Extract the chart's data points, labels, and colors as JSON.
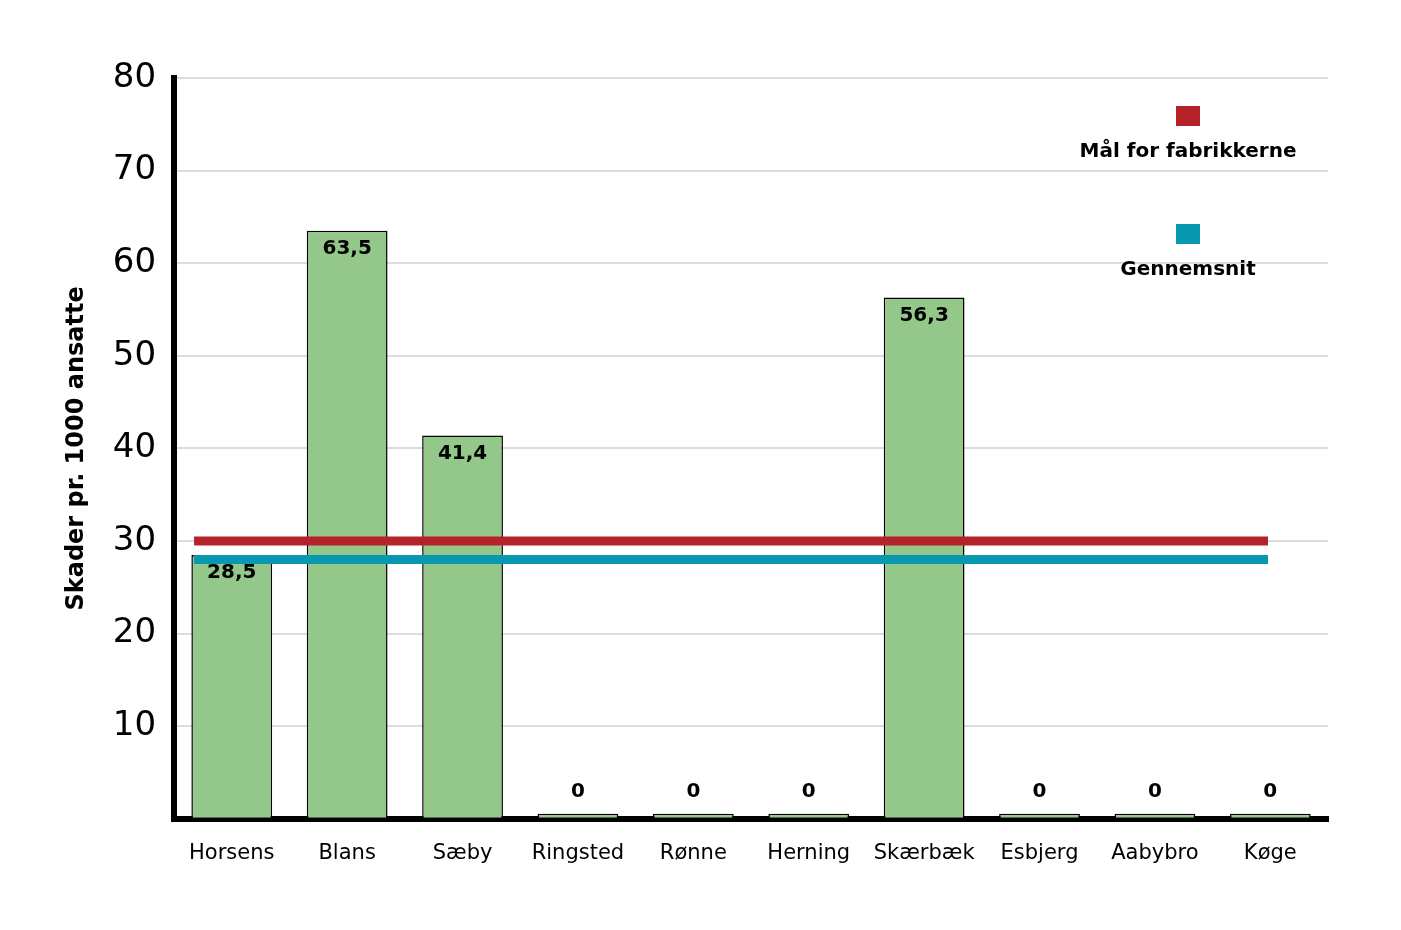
{
  "chart_data": {
    "type": "bar",
    "ylabel": "Skader pr. 1000 ansatte",
    "categories": [
      "Horsens",
      "Blans",
      "Sæby",
      "Ringsted",
      "Rønne",
      "Herning",
      "Skærbæk",
      "Esbjerg",
      "Aabybro",
      "Køge"
    ],
    "values": [
      28.5,
      63.5,
      41.4,
      0,
      0,
      0,
      56.3,
      0,
      0,
      0
    ],
    "value_labels": [
      "28,5",
      "63,5",
      "41,4",
      "0",
      "0",
      "0",
      "56,3",
      "0",
      "0",
      "0"
    ],
    "color": "#93c88a",
    "ylim": [
      0,
      80
    ],
    "yticks": [
      {
        "value": 0,
        "label": null
      },
      10,
      20,
      30,
      40,
      50,
      60,
      70,
      80
    ],
    "grid": "y",
    "ref_lines": [
      {
        "axis": "y",
        "value": 28,
        "label": "Gennemsnit",
        "color": "#0898b0"
      },
      {
        "axis": "y",
        "value": 30,
        "label": "Mål for fabrikkerne",
        "color": "#b5222a"
      }
    ],
    "legend": "top right"
  }
}
